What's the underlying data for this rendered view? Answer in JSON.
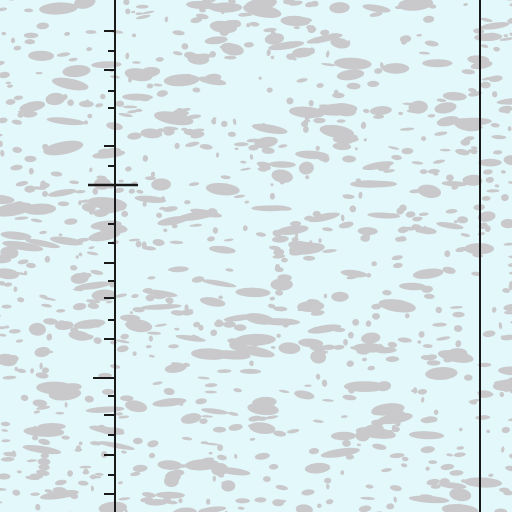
{
  "colors": {
    "background": "#e3f8fb",
    "blotch": "#c9c9cb",
    "line": "#1a1a1a"
  },
  "icons": [
    "scale-ruler",
    "crosshair-marker"
  ]
}
